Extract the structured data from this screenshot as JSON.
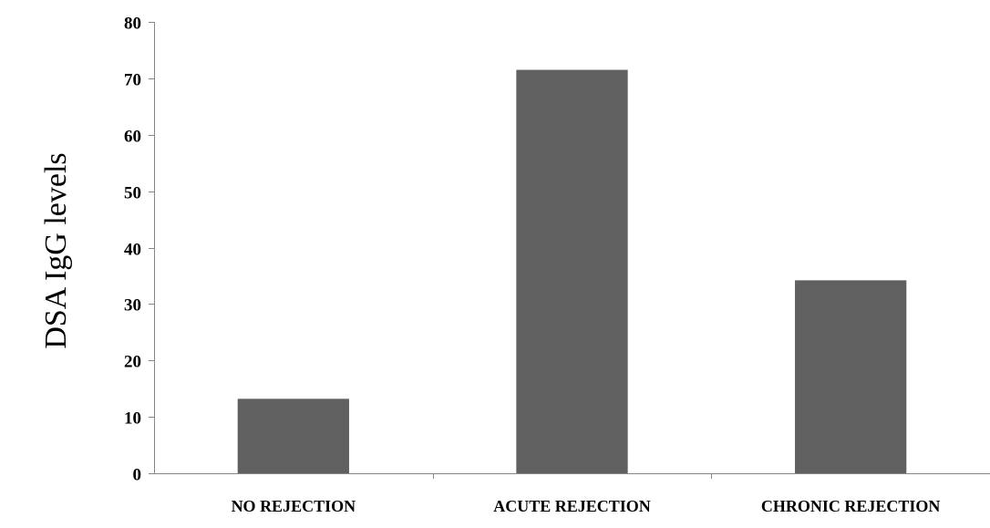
{
  "chart_data": {
    "type": "bar",
    "title": "",
    "xlabel": "",
    "ylabel": "DSA IgG levels",
    "categories": [
      "NO REJECTION",
      "ACUTE REJECTION",
      "CHRONIC REJECTION"
    ],
    "values": [
      13.2,
      71.5,
      34.2
    ],
    "ylim": [
      0,
      80
    ],
    "yticks": [
      0,
      10,
      20,
      30,
      40,
      50,
      60,
      70,
      80
    ],
    "grid": false,
    "legend": "none",
    "bar_color": "#606060",
    "axis_color": "#868686"
  }
}
